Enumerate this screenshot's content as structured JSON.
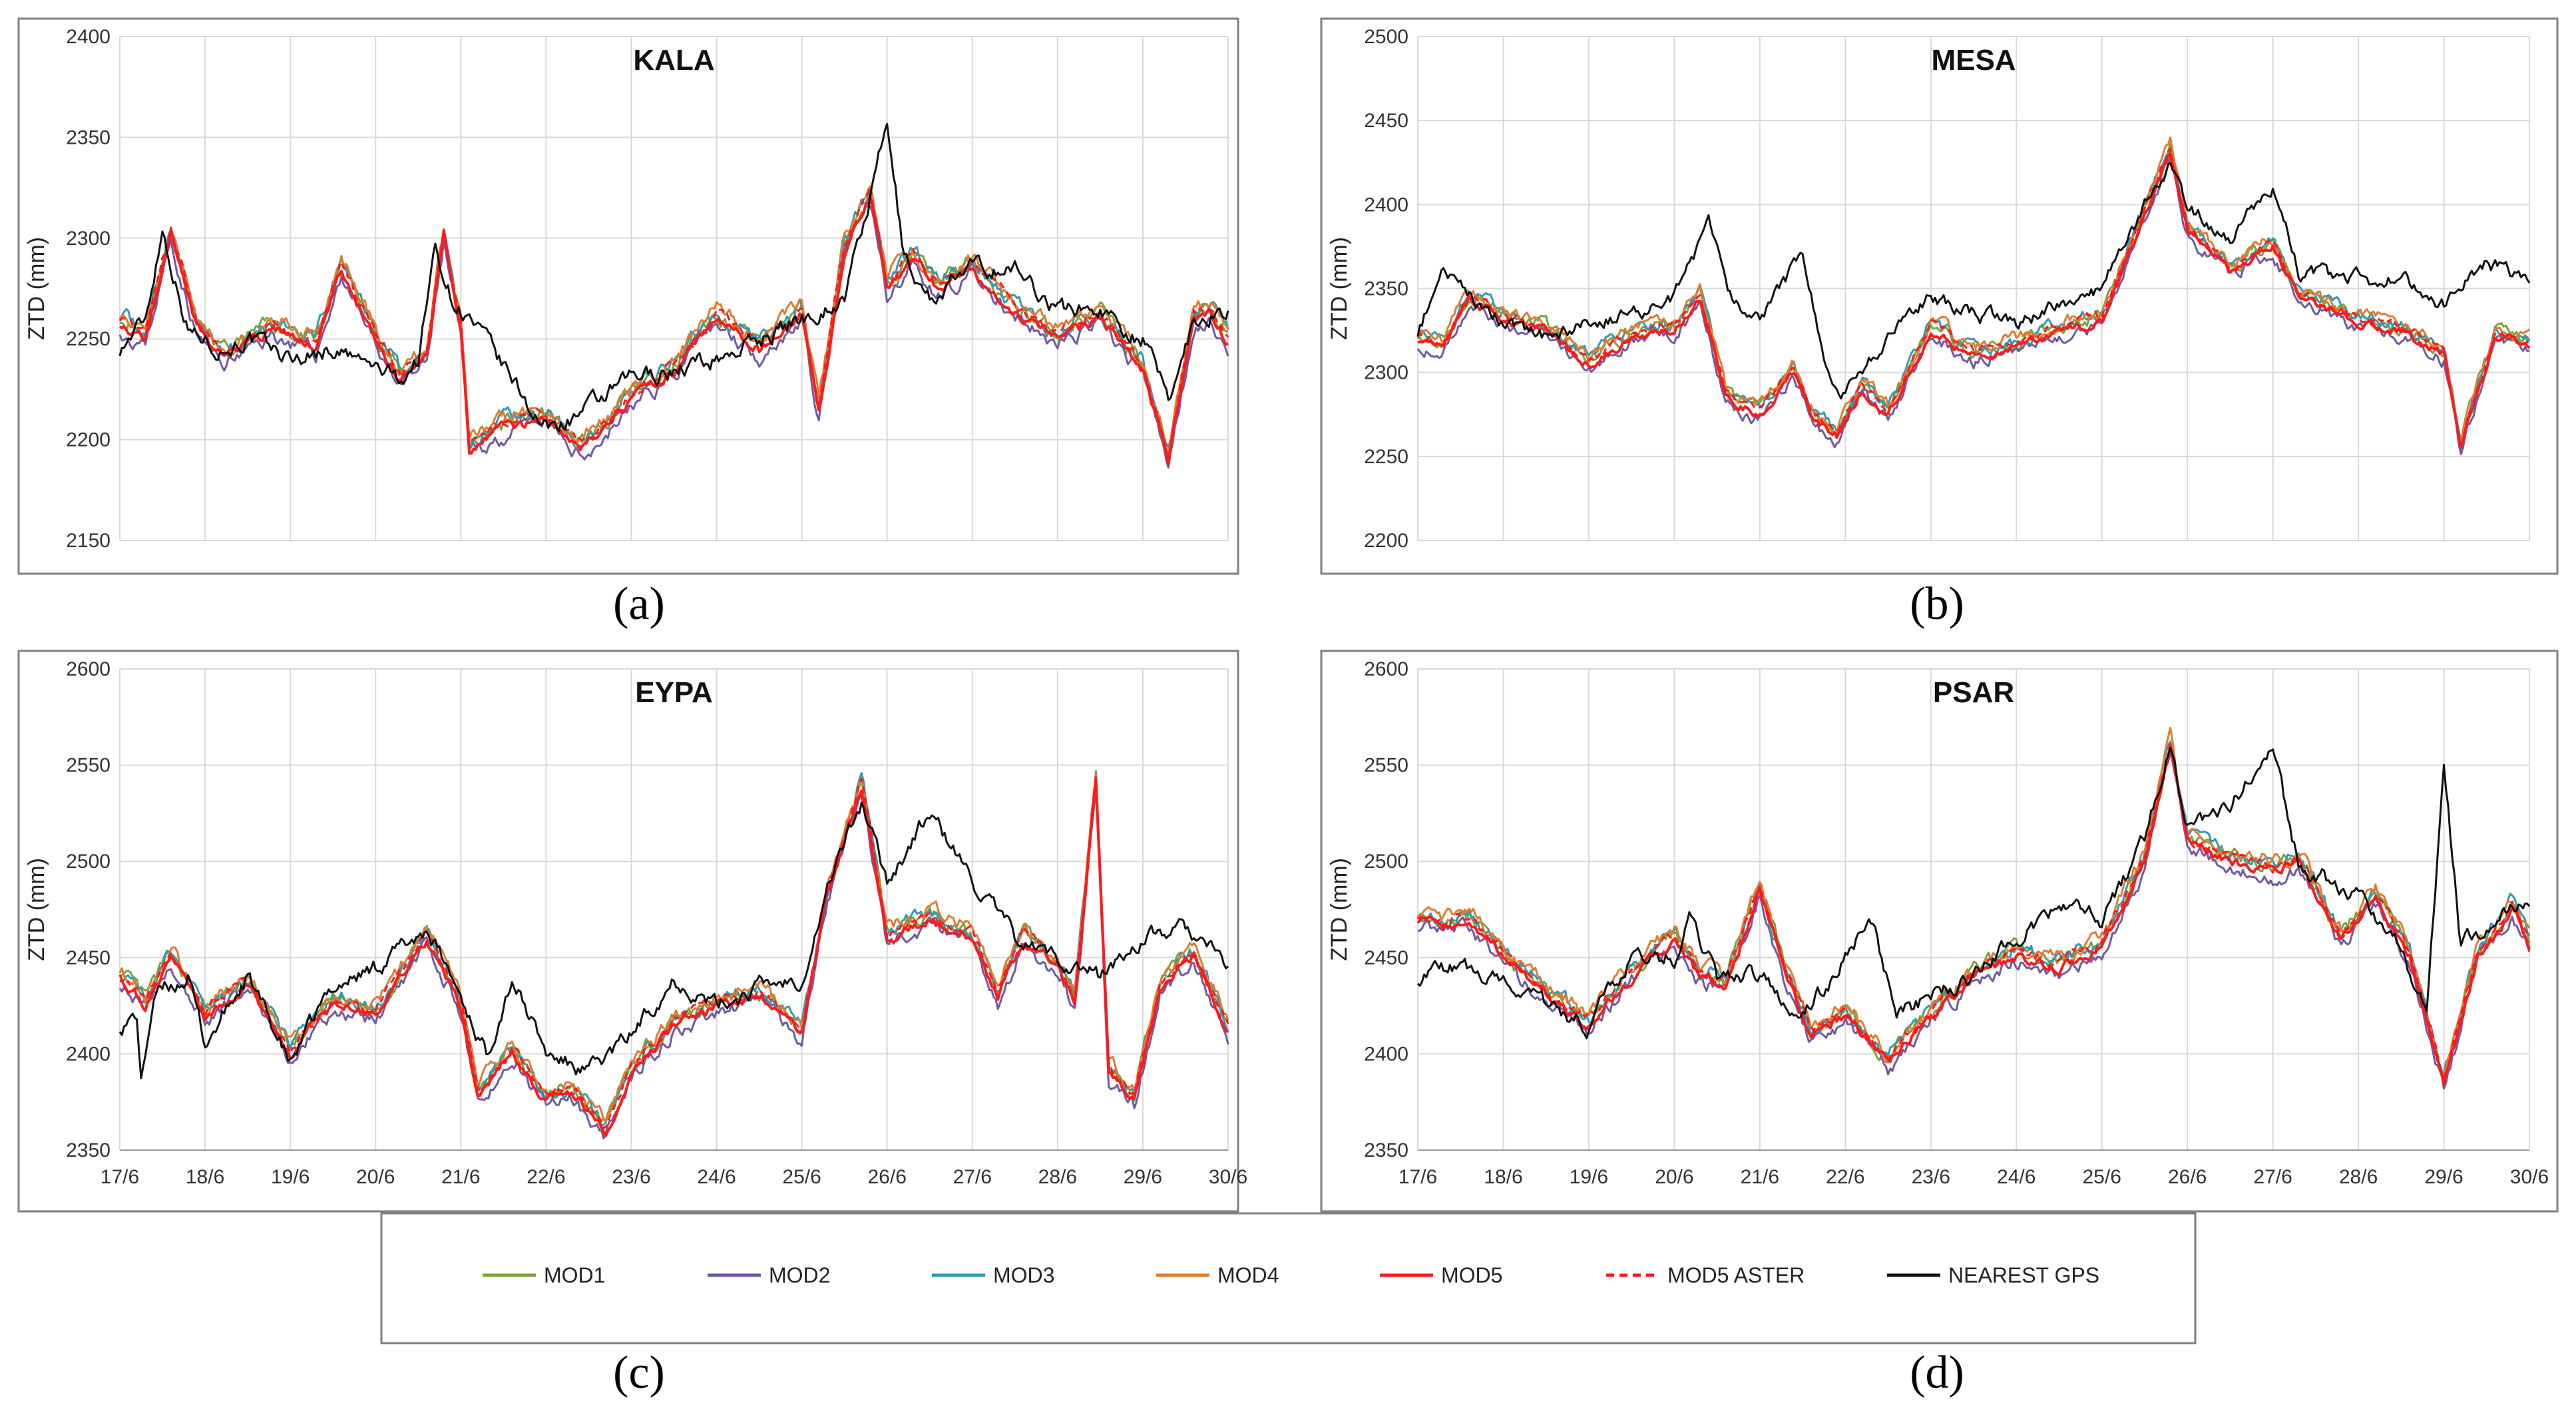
{
  "chart_data": [
    {
      "type": "line",
      "panel": "a",
      "title": "KALA",
      "ylabel": "ZTD (mm)",
      "ylim": [
        2150,
        2400
      ],
      "yticks": [
        "2150",
        "2200",
        "2250",
        "2300",
        "2350",
        "2400"
      ],
      "xlim": [
        0,
        13
      ],
      "series_keys": {
        "GPS": [
          [
            0,
            2245
          ],
          [
            0.3,
            2260
          ],
          [
            0.5,
            2305
          ],
          [
            0.8,
            2255
          ],
          [
            1.2,
            2245
          ],
          [
            1.5,
            2250
          ],
          [
            2,
            2240
          ],
          [
            2.5,
            2245
          ],
          [
            3,
            2235
          ],
          [
            3.3,
            2230
          ],
          [
            3.5,
            2240
          ],
          [
            3.7,
            2295
          ],
          [
            3.9,
            2270
          ],
          [
            4.1,
            2260
          ],
          [
            5,
            2205
          ],
          [
            5.5,
            2215
          ],
          [
            6,
            2230
          ],
          [
            6.5,
            2235
          ],
          [
            7,
            2240
          ],
          [
            7.5,
            2250
          ],
          [
            8,
            2260
          ],
          [
            8.5,
            2270
          ],
          [
            8.8,
            2320
          ],
          [
            9,
            2355
          ],
          [
            9.2,
            2290
          ],
          [
            9.5,
            2270
          ],
          [
            10,
            2285
          ],
          [
            10.5,
            2285
          ],
          [
            11,
            2265
          ],
          [
            11.5,
            2265
          ],
          [
            12,
            2250
          ],
          [
            12.3,
            2220
          ],
          [
            12.6,
            2260
          ],
          [
            13,
            2265
          ]
        ],
        "MOD5": [
          [
            0,
            2258
          ],
          [
            0.3,
            2250
          ],
          [
            0.6,
            2302
          ],
          [
            0.9,
            2255
          ],
          [
            1.2,
            2240
          ],
          [
            1.8,
            2255
          ],
          [
            2.3,
            2245
          ],
          [
            2.6,
            2285
          ],
          [
            3,
            2250
          ],
          [
            3.3,
            2230
          ],
          [
            3.6,
            2240
          ],
          [
            3.8,
            2300
          ],
          [
            4,
            2255
          ],
          [
            4.1,
            2195
          ],
          [
            4.5,
            2205
          ],
          [
            5,
            2210
          ],
          [
            5.4,
            2195
          ],
          [
            5.7,
            2205
          ],
          [
            6,
            2220
          ],
          [
            6.5,
            2235
          ],
          [
            7,
            2260
          ],
          [
            7.5,
            2245
          ],
          [
            8,
            2262
          ],
          [
            8.2,
            2212
          ],
          [
            8.5,
            2295
          ],
          [
            8.8,
            2320
          ],
          [
            9,
            2275
          ],
          [
            9.3,
            2290
          ],
          [
            9.6,
            2275
          ],
          [
            10,
            2285
          ],
          [
            10.5,
            2262
          ],
          [
            11,
            2250
          ],
          [
            11.5,
            2260
          ],
          [
            12,
            2235
          ],
          [
            12.3,
            2190
          ],
          [
            12.6,
            2260
          ],
          [
            12.8,
            2262
          ],
          [
            13,
            2248
          ]
        ]
      },
      "note": "other model series follow MOD5 closely with small offsets"
    },
    {
      "type": "line",
      "panel": "b",
      "title": "MESA",
      "ylabel": "ZTD (mm)",
      "ylim": [
        2200,
        2500
      ],
      "yticks": [
        "2200",
        "2250",
        "2300",
        "2350",
        "2400",
        "2450",
        "2500"
      ],
      "xlim": [
        0,
        13
      ],
      "series_keys": {
        "GPS": [
          [
            0,
            2325
          ],
          [
            0.3,
            2360
          ],
          [
            0.6,
            2345
          ],
          [
            1,
            2330
          ],
          [
            1.5,
            2320
          ],
          [
            2,
            2330
          ],
          [
            2.5,
            2335
          ],
          [
            3,
            2345
          ],
          [
            3.4,
            2385
          ],
          [
            3.7,
            2340
          ],
          [
            4,
            2330
          ],
          [
            4.5,
            2370
          ],
          [
            4.8,
            2300
          ],
          [
            5,
            2290
          ],
          [
            5.5,
            2320
          ],
          [
            6,
            2345
          ],
          [
            6.5,
            2335
          ],
          [
            7,
            2330
          ],
          [
            7.5,
            2340
          ],
          [
            8,
            2350
          ],
          [
            8.5,
            2400
          ],
          [
            8.8,
            2425
          ],
          [
            9,
            2400
          ],
          [
            9.5,
            2380
          ],
          [
            10,
            2410
          ],
          [
            10.3,
            2360
          ],
          [
            11,
            2355
          ],
          [
            11.5,
            2355
          ],
          [
            12,
            2340
          ],
          [
            12.5,
            2365
          ],
          [
            13,
            2355
          ]
        ],
        "MOD5": [
          [
            0,
            2320
          ],
          [
            0.3,
            2315
          ],
          [
            0.6,
            2345
          ],
          [
            1,
            2330
          ],
          [
            1.5,
            2325
          ],
          [
            2,
            2305
          ],
          [
            2.5,
            2320
          ],
          [
            3,
            2325
          ],
          [
            3.3,
            2345
          ],
          [
            3.6,
            2285
          ],
          [
            4,
            2275
          ],
          [
            4.4,
            2300
          ],
          [
            4.6,
            2275
          ],
          [
            4.9,
            2262
          ],
          [
            5.2,
            2290
          ],
          [
            5.5,
            2275
          ],
          [
            6,
            2325
          ],
          [
            6.5,
            2310
          ],
          [
            7,
            2315
          ],
          [
            7.5,
            2325
          ],
          [
            8,
            2330
          ],
          [
            8.5,
            2395
          ],
          [
            8.8,
            2430
          ],
          [
            9,
            2385
          ],
          [
            9.5,
            2360
          ],
          [
            10,
            2375
          ],
          [
            10.3,
            2345
          ],
          [
            11,
            2330
          ],
          [
            11.5,
            2325
          ],
          [
            12,
            2310
          ],
          [
            12.2,
            2255
          ],
          [
            12.6,
            2320
          ],
          [
            13,
            2315
          ]
        ]
      }
    },
    {
      "type": "line",
      "panel": "c",
      "title": "EYPA",
      "ylabel": "ZTD (mm)",
      "ylim": [
        2350,
        2600
      ],
      "yticks": [
        "2350",
        "2400",
        "2450",
        "2500",
        "2550",
        "2600"
      ],
      "xlim": [
        0,
        13
      ],
      "xticks": [
        "17/6",
        "18/6",
        "19/6",
        "20/6",
        "21/6",
        "22/6",
        "23/6",
        "24/6",
        "25/6",
        "26/6",
        "27/6",
        "28/6",
        "29/6",
        "30/6"
      ],
      "series_keys": {
        "GPS": [
          [
            0,
            2415
          ],
          [
            0.2,
            2420
          ],
          [
            0.25,
            2385
          ],
          [
            0.4,
            2430
          ],
          [
            0.8,
            2440
          ],
          [
            1,
            2405
          ],
          [
            1.5,
            2440
          ],
          [
            2,
            2395
          ],
          [
            2.5,
            2435
          ],
          [
            3,
            2445
          ],
          [
            3.6,
            2465
          ],
          [
            4,
            2430
          ],
          [
            4.3,
            2400
          ],
          [
            4.6,
            2440
          ],
          [
            5,
            2400
          ],
          [
            5.5,
            2390
          ],
          [
            6,
            2410
          ],
          [
            6.5,
            2440
          ],
          [
            7,
            2425
          ],
          [
            7.5,
            2435
          ],
          [
            8,
            2440
          ],
          [
            8.4,
            2500
          ],
          [
            8.7,
            2530
          ],
          [
            9,
            2490
          ],
          [
            9.5,
            2525
          ],
          [
            10,
            2490
          ],
          [
            10.5,
            2460
          ],
          [
            11,
            2450
          ],
          [
            11.5,
            2440
          ],
          [
            12,
            2460
          ],
          [
            12.5,
            2465
          ],
          [
            13,
            2445
          ]
        ],
        "MOD5": [
          [
            0,
            2440
          ],
          [
            0.3,
            2425
          ],
          [
            0.6,
            2450
          ],
          [
            1,
            2420
          ],
          [
            1.5,
            2435
          ],
          [
            2,
            2400
          ],
          [
            2.5,
            2425
          ],
          [
            3,
            2420
          ],
          [
            3.6,
            2460
          ],
          [
            4,
            2425
          ],
          [
            4.2,
            2378
          ],
          [
            4.6,
            2400
          ],
          [
            5,
            2375
          ],
          [
            5.3,
            2380
          ],
          [
            5.7,
            2360
          ],
          [
            6,
            2390
          ],
          [
            6.5,
            2415
          ],
          [
            7,
            2425
          ],
          [
            7.5,
            2430
          ],
          [
            8,
            2410
          ],
          [
            8.3,
            2480
          ],
          [
            8.7,
            2540
          ],
          [
            9,
            2460
          ],
          [
            9.5,
            2470
          ],
          [
            10,
            2460
          ],
          [
            10.3,
            2430
          ],
          [
            10.6,
            2460
          ],
          [
            11,
            2445
          ],
          [
            11.2,
            2425
          ],
          [
            11.45,
            2540
          ],
          [
            11.6,
            2390
          ],
          [
            11.9,
            2375
          ],
          [
            12.2,
            2435
          ],
          [
            12.6,
            2450
          ],
          [
            13,
            2412
          ]
        ]
      }
    },
    {
      "type": "line",
      "panel": "d",
      "title": "PSAR",
      "ylabel": "ZTD (mm)",
      "ylim": [
        2350,
        2600
      ],
      "yticks": [
        "2350",
        "2400",
        "2450",
        "2500",
        "2550",
        "2600"
      ],
      "xlim": [
        0,
        13
      ],
      "xticks": [
        "17/6",
        "18/6",
        "19/6",
        "20/6",
        "21/6",
        "22/6",
        "23/6",
        "24/6",
        "25/6",
        "26/6",
        "27/6",
        "28/6",
        "29/6",
        "30/6"
      ],
      "series_keys": {
        "GPS": [
          [
            0,
            2440
          ],
          [
            0.5,
            2445
          ],
          [
            1,
            2440
          ],
          [
            1.5,
            2425
          ],
          [
            2,
            2415
          ],
          [
            2.5,
            2450
          ],
          [
            3,
            2450
          ],
          [
            3.2,
            2470
          ],
          [
            3.5,
            2440
          ],
          [
            4,
            2440
          ],
          [
            4.5,
            2420
          ],
          [
            5,
            2450
          ],
          [
            5.3,
            2470
          ],
          [
            5.6,
            2420
          ],
          [
            6,
            2430
          ],
          [
            6.5,
            2440
          ],
          [
            7,
            2460
          ],
          [
            7.5,
            2475
          ],
          [
            8,
            2470
          ],
          [
            8.5,
            2510
          ],
          [
            8.8,
            2565
          ],
          [
            9,
            2520
          ],
          [
            9.5,
            2530
          ],
          [
            10,
            2555
          ],
          [
            10.3,
            2500
          ],
          [
            11,
            2480
          ],
          [
            11.5,
            2455
          ],
          [
            11.8,
            2420
          ],
          [
            12,
            2550
          ],
          [
            12.2,
            2455
          ],
          [
            12.6,
            2470
          ],
          [
            13,
            2480
          ]
        ],
        "MOD5": [
          [
            0,
            2470
          ],
          [
            0.3,
            2465
          ],
          [
            0.6,
            2470
          ],
          [
            1,
            2450
          ],
          [
            1.5,
            2430
          ],
          [
            2,
            2415
          ],
          [
            2.5,
            2440
          ],
          [
            3,
            2460
          ],
          [
            3.3,
            2440
          ],
          [
            3.6,
            2435
          ],
          [
            4,
            2485
          ],
          [
            4.3,
            2440
          ],
          [
            4.6,
            2410
          ],
          [
            5,
            2420
          ],
          [
            5.5,
            2395
          ],
          [
            6,
            2420
          ],
          [
            6.5,
            2440
          ],
          [
            7,
            2450
          ],
          [
            7.5,
            2445
          ],
          [
            8,
            2455
          ],
          [
            8.5,
            2500
          ],
          [
            8.8,
            2560
          ],
          [
            9,
            2510
          ],
          [
            9.5,
            2500
          ],
          [
            10,
            2495
          ],
          [
            10.3,
            2500
          ],
          [
            10.8,
            2460
          ],
          [
            11.2,
            2480
          ],
          [
            11.6,
            2450
          ],
          [
            12,
            2385
          ],
          [
            12.4,
            2450
          ],
          [
            12.8,
            2475
          ],
          [
            13,
            2455
          ]
        ]
      }
    }
  ],
  "captions": [
    "(a)",
    "(b)",
    "(c)",
    "(d)"
  ],
  "legend": [
    {
      "name": "MOD1",
      "color": "#7aa33b",
      "dash": false
    },
    {
      "name": "MOD2",
      "color": "#7058a3",
      "dash": false
    },
    {
      "name": "MOD3",
      "color": "#2f9bb3",
      "dash": false
    },
    {
      "name": "MOD4",
      "color": "#e07b2e",
      "dash": false
    },
    {
      "name": "MOD5",
      "color": "#ff1a1a",
      "dash": false
    },
    {
      "name": "MOD5 ASTER",
      "color": "#ff1a1a",
      "dash": true
    },
    {
      "name": "NEAREST GPS",
      "color": "#111111",
      "dash": false
    }
  ]
}
